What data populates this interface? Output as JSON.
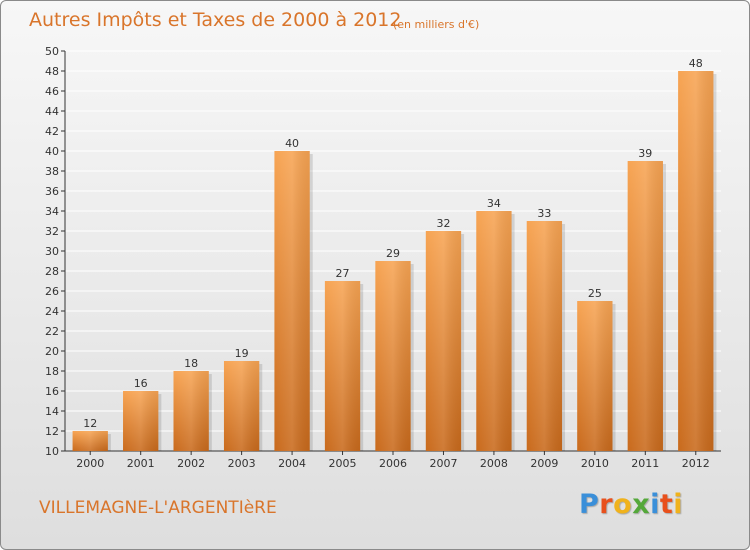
{
  "header": {
    "title": "Autres Impôts et Taxes de 2000 à 2012",
    "subtitle": "(en milliers d'€)"
  },
  "footer": {
    "commune": "VILLEMAGNE-L'ARGENTIèRE",
    "logo_letters": [
      "P",
      "r",
      "o",
      "x",
      "i",
      "t",
      "i"
    ],
    "logo_colors": [
      "#3a8fd9",
      "#e8501c",
      "#f0b21c",
      "#54a83a",
      "#3a8fd9",
      "#e8501c",
      "#f0b21c"
    ]
  },
  "colors": {
    "bar_top": "#f7a453",
    "bar_bottom": "#c96a1c",
    "grid": "#ffffff",
    "title": "#d9752b"
  },
  "chart_data": {
    "type": "bar",
    "title": "Autres Impôts et Taxes de 2000 à 2012",
    "xlabel": "",
    "ylabel": "",
    "categories": [
      "2000",
      "2001",
      "2002",
      "2003",
      "2004",
      "2005",
      "2006",
      "2007",
      "2008",
      "2009",
      "2010",
      "2011",
      "2012"
    ],
    "values": [
      12,
      16,
      18,
      19,
      40,
      27,
      29,
      32,
      34,
      33,
      25,
      39,
      48
    ],
    "ylim": [
      10,
      50
    ],
    "yticks": [
      10,
      12,
      14,
      16,
      18,
      20,
      22,
      24,
      26,
      28,
      30,
      32,
      34,
      36,
      38,
      40,
      42,
      44,
      46,
      48,
      50
    ],
    "grid": true,
    "show_values": true
  }
}
